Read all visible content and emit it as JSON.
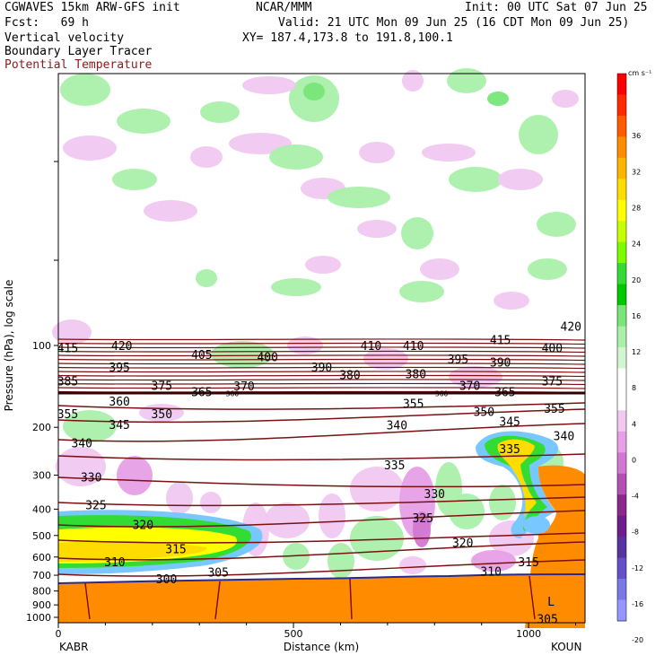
{
  "header": {
    "model": "CGWAVES 15km ARW-GFS init",
    "org": "NCAR/MMM",
    "init": "Init: 00 UTC Sat 07 Jun 25",
    "fcst": "Fcst:   69 h",
    "valid": "Valid: 21 UTC Mon 09 Jun 25 (16 CDT Mon 09 Jun 25)",
    "field1": "Vertical velocity",
    "xy": "XY= 187.4,173.8 to 191.8,100.1",
    "field2": "Boundary Layer Tracer",
    "field3": "Potential Temperature",
    "field3_color": "#8b1a1a"
  },
  "colorbar": {
    "unit": "cm s⁻¹",
    "levels": [
      "36",
      "32",
      "28",
      "24",
      "20",
      "16",
      "12",
      "8",
      "4",
      "0",
      "-4",
      "-8",
      "-12",
      "-16",
      "-20"
    ],
    "colors": [
      "#ff0000",
      "#ff2a00",
      "#ff5a00",
      "#ff8c00",
      "#ffb400",
      "#ffdc00",
      "#ffff00",
      "#c8ff00",
      "#7cfc00",
      "#32dc32",
      "#00c800",
      "#78e678",
      "#aaf0aa",
      "#d2f5d2",
      "#ffffff",
      "#ffffff",
      "#f0c8f0",
      "#e6a0e6",
      "#d278d2",
      "#b450b4",
      "#8c288c",
      "#6e1e8c",
      "#5a32a0",
      "#6450c8",
      "#7878e6",
      "#9696ff"
    ]
  },
  "axes": {
    "ylabel": "Pressure (hPa), log scale",
    "xlabel": "Distance (km)",
    "left_station": "KABR",
    "right_station": "KOUN"
  },
  "chart_data": {
    "type": "heatmap",
    "x_range": [
      0,
      1120
    ],
    "x_ticks": [
      0,
      500,
      1000
    ],
    "y_scale": "log",
    "y_range_hpa": [
      1000,
      10
    ],
    "y_ticks": [
      100,
      200,
      300,
      400,
      500,
      600,
      700,
      800,
      900,
      1000
    ],
    "contour_field": "Potential Temperature",
    "isentrope_labels": [
      {
        "value": 415,
        "x_km": 20,
        "p": 102
      },
      {
        "value": 420,
        "x_km": 135,
        "p": 100
      },
      {
        "value": 405,
        "x_km": 305,
        "p": 108
      },
      {
        "value": 400,
        "x_km": 445,
        "p": 110
      },
      {
        "value": 410,
        "x_km": 665,
        "p": 100
      },
      {
        "value": 410,
        "x_km": 755,
        "p": 100
      },
      {
        "value": 415,
        "x_km": 940,
        "p": 95
      },
      {
        "value": 420,
        "x_km": 1090,
        "p": 85
      },
      {
        "value": 400,
        "x_km": 1050,
        "p": 102
      },
      {
        "value": 395,
        "x_km": 130,
        "p": 120
      },
      {
        "value": 390,
        "x_km": 560,
        "p": 120
      },
      {
        "value": 380,
        "x_km": 620,
        "p": 128
      },
      {
        "value": 380,
        "x_km": 760,
        "p": 127
      },
      {
        "value": 395,
        "x_km": 850,
        "p": 112
      },
      {
        "value": 390,
        "x_km": 940,
        "p": 115
      },
      {
        "value": 385,
        "x_km": 20,
        "p": 135
      },
      {
        "value": 375,
        "x_km": 220,
        "p": 140
      },
      {
        "value": 365,
        "x_km": 305,
        "p": 148
      },
      {
        "value": 370,
        "x_km": 395,
        "p": 141
      },
      {
        "value": 370,
        "x_km": 875,
        "p": 140
      },
      {
        "value": 365,
        "x_km": 950,
        "p": 148
      },
      {
        "value": 375,
        "x_km": 1050,
        "p": 135
      },
      {
        "value": 360,
        "x_km": 130,
        "p": 160
      },
      {
        "value": 355,
        "x_km": 20,
        "p": 178
      },
      {
        "value": 350,
        "x_km": 220,
        "p": 178
      },
      {
        "value": 355,
        "x_km": 755,
        "p": 163
      },
      {
        "value": 350,
        "x_km": 905,
        "p": 175
      },
      {
        "value": 355,
        "x_km": 1055,
        "p": 170
      },
      {
        "value": 345,
        "x_km": 130,
        "p": 195
      },
      {
        "value": 340,
        "x_km": 720,
        "p": 196
      },
      {
        "value": 345,
        "x_km": 960,
        "p": 190
      },
      {
        "value": 340,
        "x_km": 1075,
        "p": 215
      },
      {
        "value": 340,
        "x_km": 50,
        "p": 228
      },
      {
        "value": 335,
        "x_km": 960,
        "p": 240
      },
      {
        "value": 335,
        "x_km": 715,
        "p": 275
      },
      {
        "value": 330,
        "x_km": 70,
        "p": 305
      },
      {
        "value": 330,
        "x_km": 800,
        "p": 350
      },
      {
        "value": 325,
        "x_km": 80,
        "p": 385
      },
      {
        "value": 325,
        "x_km": 775,
        "p": 430
      },
      {
        "value": 320,
        "x_km": 180,
        "p": 455
      },
      {
        "value": 320,
        "x_km": 860,
        "p": 530
      },
      {
        "value": 315,
        "x_km": 250,
        "p": 560
      },
      {
        "value": 315,
        "x_km": 1000,
        "p": 625
      },
      {
        "value": 310,
        "x_km": 120,
        "p": 625
      },
      {
        "value": 310,
        "x_km": 920,
        "p": 675
      },
      {
        "value": 305,
        "x_km": 340,
        "p": 680
      },
      {
        "value": 300,
        "x_km": 230,
        "p": 720
      },
      {
        "value": 305,
        "x_km": 1040,
        "p": 1010
      }
    ],
    "small_labels": [
      {
        "text": "360",
        "x_km": 370,
        "p": 150
      },
      {
        "text": "360",
        "x_km": 815,
        "p": 150
      }
    ],
    "surface_low_label": "L"
  }
}
